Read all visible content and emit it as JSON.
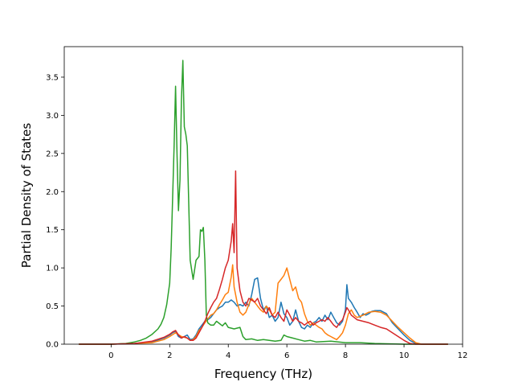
{
  "chart_data": {
    "type": "line",
    "title": "",
    "xlabel": "Frequency (THz)",
    "ylabel": "Partial Density of States",
    "xlim": [
      -1.6,
      12.0
    ],
    "ylim": [
      0.0,
      3.9
    ],
    "xticks": [
      0,
      2,
      4,
      6,
      8,
      10,
      12
    ],
    "yticks": [
      0.0,
      0.5,
      1.0,
      1.5,
      2.0,
      2.5,
      3.0,
      3.5
    ],
    "xtick_labels": [
      "0",
      "2",
      "4",
      "6",
      "8",
      "10",
      "12"
    ],
    "ytick_labels": [
      "0.0",
      "0.5",
      "1.0",
      "1.5",
      "2.0",
      "2.5",
      "3.0",
      "3.5"
    ],
    "grid": false,
    "legend": "none",
    "series": [
      {
        "color": "#1f77b4",
        "x": [
          -1.1,
          0.0,
          0.8,
          1.4,
          1.8,
          2.0,
          2.1,
          2.2,
          2.3,
          2.4,
          2.5,
          2.6,
          2.7,
          2.8,
          2.9,
          3.0,
          3.1,
          3.2,
          3.3,
          3.4,
          3.5,
          3.6,
          3.7,
          3.8,
          3.9,
          4.0,
          4.1,
          4.2,
          4.3,
          4.4,
          4.5,
          4.6,
          4.7,
          4.8,
          4.9,
          5.0,
          5.1,
          5.2,
          5.3,
          5.4,
          5.5,
          5.6,
          5.7,
          5.8,
          5.9,
          6.0,
          6.1,
          6.2,
          6.3,
          6.4,
          6.5,
          6.6,
          6.7,
          6.8,
          6.9,
          7.0,
          7.1,
          7.2,
          7.3,
          7.4,
          7.5,
          7.6,
          7.7,
          7.8,
          7.9,
          8.0,
          8.05,
          8.1,
          8.2,
          8.3,
          8.4,
          8.5,
          8.6,
          8.7,
          8.8,
          8.9,
          9.0,
          9.2,
          9.4,
          9.6,
          9.8,
          10.0,
          10.2,
          10.4,
          10.6,
          11.5
        ],
        "y": [
          0.0,
          0.0,
          0.01,
          0.03,
          0.08,
          0.12,
          0.15,
          0.17,
          0.1,
          0.08,
          0.1,
          0.12,
          0.06,
          0.07,
          0.12,
          0.2,
          0.25,
          0.3,
          0.32,
          0.35,
          0.4,
          0.45,
          0.48,
          0.5,
          0.55,
          0.55,
          0.58,
          0.55,
          0.5,
          0.52,
          0.5,
          0.55,
          0.5,
          0.65,
          0.85,
          0.87,
          0.6,
          0.45,
          0.5,
          0.35,
          0.38,
          0.3,
          0.35,
          0.55,
          0.4,
          0.35,
          0.25,
          0.3,
          0.45,
          0.3,
          0.22,
          0.2,
          0.25,
          0.22,
          0.28,
          0.3,
          0.35,
          0.3,
          0.38,
          0.32,
          0.42,
          0.35,
          0.28,
          0.25,
          0.3,
          0.45,
          0.78,
          0.6,
          0.55,
          0.48,
          0.42,
          0.35,
          0.4,
          0.38,
          0.4,
          0.43,
          0.44,
          0.44,
          0.4,
          0.28,
          0.2,
          0.12,
          0.05,
          0.01,
          0.0,
          0.0
        ]
      },
      {
        "color": "#ff7f0e",
        "x": [
          -1.1,
          0.0,
          0.8,
          1.4,
          1.8,
          2.0,
          2.2,
          2.4,
          2.6,
          2.7,
          2.8,
          2.9,
          3.0,
          3.1,
          3.2,
          3.3,
          3.4,
          3.5,
          3.6,
          3.7,
          3.8,
          3.9,
          4.0,
          4.1,
          4.15,
          4.2,
          4.3,
          4.4,
          4.5,
          4.6,
          4.7,
          4.8,
          4.9,
          5.0,
          5.1,
          5.2,
          5.3,
          5.4,
          5.5,
          5.6,
          5.7,
          5.8,
          5.9,
          6.0,
          6.1,
          6.2,
          6.3,
          6.4,
          6.5,
          6.6,
          6.7,
          6.8,
          6.9,
          7.0,
          7.1,
          7.2,
          7.3,
          7.4,
          7.5,
          7.6,
          7.7,
          7.8,
          7.9,
          8.0,
          8.1,
          8.2,
          8.3,
          8.4,
          8.6,
          8.8,
          9.0,
          9.2,
          9.4,
          9.6,
          9.8,
          10.0,
          10.2,
          10.4,
          10.6,
          11.5
        ],
        "y": [
          0.0,
          0.0,
          0.01,
          0.02,
          0.06,
          0.1,
          0.15,
          0.1,
          0.08,
          0.05,
          0.06,
          0.1,
          0.18,
          0.22,
          0.28,
          0.33,
          0.38,
          0.4,
          0.45,
          0.52,
          0.58,
          0.65,
          0.68,
          0.88,
          1.04,
          0.75,
          0.55,
          0.42,
          0.38,
          0.42,
          0.52,
          0.6,
          0.55,
          0.5,
          0.45,
          0.42,
          0.5,
          0.45,
          0.38,
          0.42,
          0.8,
          0.85,
          0.9,
          1.0,
          0.85,
          0.7,
          0.75,
          0.6,
          0.55,
          0.4,
          0.3,
          0.25,
          0.28,
          0.25,
          0.22,
          0.2,
          0.15,
          0.12,
          0.1,
          0.08,
          0.06,
          0.1,
          0.15,
          0.25,
          0.4,
          0.45,
          0.38,
          0.35,
          0.38,
          0.42,
          0.43,
          0.42,
          0.38,
          0.3,
          0.22,
          0.15,
          0.08,
          0.02,
          0.0,
          0.0
        ]
      },
      {
        "color": "#2ca02c",
        "x": [
          -1.1,
          0.0,
          0.5,
          0.8,
          1.0,
          1.2,
          1.4,
          1.6,
          1.7,
          1.8,
          1.9,
          2.0,
          2.05,
          2.1,
          2.15,
          2.2,
          2.25,
          2.3,
          2.35,
          2.4,
          2.45,
          2.5,
          2.55,
          2.6,
          2.7,
          2.8,
          2.9,
          3.0,
          3.05,
          3.1,
          3.15,
          3.2,
          3.25,
          3.3,
          3.4,
          3.5,
          3.6,
          3.7,
          3.8,
          3.9,
          4.0,
          4.2,
          4.4,
          4.5,
          4.6,
          4.8,
          5.0,
          5.2,
          5.4,
          5.6,
          5.8,
          5.9,
          6.0,
          6.2,
          6.4,
          6.6,
          6.8,
          7.0,
          7.5,
          8.0,
          8.5,
          9.0,
          10.0,
          11.5
        ],
        "y": [
          0.0,
          0.0,
          0.01,
          0.03,
          0.05,
          0.08,
          0.13,
          0.2,
          0.26,
          0.35,
          0.52,
          0.8,
          1.25,
          1.9,
          2.6,
          3.38,
          2.5,
          1.75,
          2.15,
          3.2,
          3.72,
          2.85,
          2.75,
          2.6,
          1.1,
          0.85,
          1.1,
          1.15,
          1.5,
          1.48,
          1.53,
          1.1,
          0.38,
          0.28,
          0.25,
          0.25,
          0.3,
          0.27,
          0.24,
          0.28,
          0.22,
          0.2,
          0.22,
          0.1,
          0.06,
          0.07,
          0.05,
          0.06,
          0.05,
          0.04,
          0.05,
          0.12,
          0.1,
          0.08,
          0.06,
          0.04,
          0.05,
          0.03,
          0.04,
          0.02,
          0.02,
          0.01,
          0.0,
          0.0
        ]
      },
      {
        "color": "#d62728",
        "x": [
          -1.1,
          0.0,
          0.8,
          1.4,
          1.8,
          2.0,
          2.1,
          2.2,
          2.3,
          2.4,
          2.5,
          2.6,
          2.7,
          2.8,
          2.9,
          3.0,
          3.1,
          3.2,
          3.3,
          3.4,
          3.5,
          3.6,
          3.7,
          3.8,
          3.9,
          4.0,
          4.1,
          4.15,
          4.2,
          4.25,
          4.3,
          4.35,
          4.4,
          4.5,
          4.6,
          4.7,
          4.8,
          4.9,
          5.0,
          5.1,
          5.2,
          5.3,
          5.4,
          5.5,
          5.6,
          5.7,
          5.8,
          5.9,
          6.0,
          6.1,
          6.2,
          6.3,
          6.4,
          6.5,
          6.6,
          6.7,
          6.8,
          6.9,
          7.0,
          7.1,
          7.2,
          7.3,
          7.4,
          7.5,
          7.6,
          7.7,
          7.8,
          7.9,
          8.0,
          8.05,
          8.1,
          8.2,
          8.3,
          8.4,
          8.6,
          8.8,
          9.0,
          9.2,
          9.4,
          9.6,
          9.8,
          10.0,
          10.2,
          10.4,
          10.6,
          11.5
        ],
        "y": [
          0.0,
          0.0,
          0.01,
          0.04,
          0.09,
          0.13,
          0.16,
          0.18,
          0.12,
          0.08,
          0.1,
          0.08,
          0.05,
          0.05,
          0.08,
          0.15,
          0.22,
          0.3,
          0.4,
          0.48,
          0.55,
          0.6,
          0.72,
          0.85,
          1.0,
          1.1,
          1.35,
          1.58,
          1.2,
          2.27,
          1.0,
          0.85,
          0.7,
          0.55,
          0.5,
          0.6,
          0.58,
          0.55,
          0.6,
          0.5,
          0.45,
          0.4,
          0.48,
          0.38,
          0.35,
          0.42,
          0.35,
          0.3,
          0.45,
          0.38,
          0.3,
          0.35,
          0.3,
          0.28,
          0.25,
          0.28,
          0.3,
          0.25,
          0.28,
          0.3,
          0.32,
          0.3,
          0.35,
          0.3,
          0.25,
          0.22,
          0.28,
          0.32,
          0.42,
          0.48,
          0.45,
          0.38,
          0.35,
          0.32,
          0.3,
          0.28,
          0.25,
          0.22,
          0.2,
          0.15,
          0.1,
          0.05,
          0.01,
          0.0,
          0.0,
          0.0
        ]
      }
    ]
  }
}
